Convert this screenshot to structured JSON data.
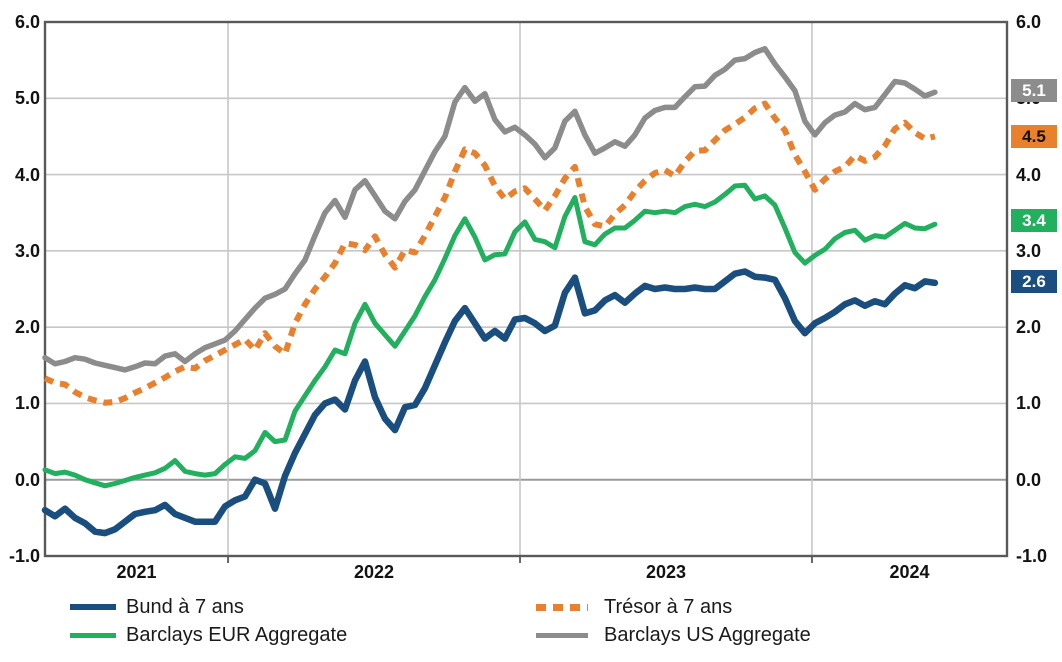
{
  "chart_data": {
    "type": "line",
    "title": "",
    "y_axis": {
      "min": -1.0,
      "max": 6.0,
      "tick_step": 1.0,
      "tick_labels": [
        "6.0",
        "5.0",
        "4.0",
        "3.0",
        "2.0",
        "1.0",
        "0.0",
        "-1.0"
      ],
      "label_sides": "both",
      "grid": true
    },
    "x_axis": {
      "year_labels": [
        "2021",
        "2022",
        "2023",
        "2024"
      ],
      "gridline_years": [
        2022,
        2023,
        2024
      ]
    },
    "sampling": {
      "start_year": 2021.373,
      "step_year": 0.034247,
      "end_axis_year": 2024.668
    },
    "colors": {
      "grid": "#c7c7c7",
      "zero_line": "#9a9a9a",
      "frame": "#595959",
      "axis_text": "#121212",
      "legend_text": "#1a1a1a"
    },
    "series": [
      {
        "name": "Bund à 7 ans",
        "color": "#1A4E7E",
        "style": "solid",
        "end_label": "2.6",
        "end_label_text_color": "#ffffff",
        "values": [
          -0.4,
          -0.48,
          -0.38,
          -0.5,
          -0.57,
          -0.68,
          -0.7,
          -0.65,
          -0.55,
          -0.45,
          -0.42,
          -0.4,
          -0.33,
          -0.45,
          -0.5,
          -0.55,
          -0.55,
          -0.55,
          -0.35,
          -0.27,
          -0.22,
          0.0,
          -0.05,
          -0.38,
          0.05,
          0.35,
          0.6,
          0.85,
          1.0,
          1.05,
          0.92,
          1.3,
          1.55,
          1.08,
          0.8,
          0.65,
          0.95,
          0.98,
          1.2,
          1.5,
          1.8,
          2.08,
          2.25,
          2.05,
          1.85,
          1.95,
          1.85,
          2.1,
          2.12,
          2.05,
          1.95,
          2.02,
          2.45,
          2.65,
          2.18,
          2.22,
          2.35,
          2.42,
          2.32,
          2.44,
          2.54,
          2.5,
          2.52,
          2.5,
          2.5,
          2.52,
          2.5,
          2.5,
          2.6,
          2.7,
          2.73,
          2.66,
          2.65,
          2.62,
          2.38,
          2.08,
          1.92,
          2.05,
          2.12,
          2.2,
          2.3,
          2.35,
          2.28,
          2.34,
          2.3,
          2.44,
          2.55,
          2.51,
          2.6,
          2.58
        ]
      },
      {
        "name": "Trésor à 7 ans",
        "color": "#E8802D",
        "style": "dashed",
        "end_label": "4.5",
        "end_label_text_color": "#111111",
        "values": [
          1.33,
          1.27,
          1.25,
          1.15,
          1.08,
          1.04,
          1.01,
          1.02,
          1.07,
          1.14,
          1.2,
          1.27,
          1.34,
          1.42,
          1.48,
          1.46,
          1.56,
          1.63,
          1.7,
          1.77,
          1.84,
          1.7,
          1.92,
          1.75,
          1.65,
          2.05,
          2.3,
          2.5,
          2.66,
          2.84,
          3.1,
          3.08,
          3.01,
          3.19,
          2.95,
          2.78,
          3.01,
          2.98,
          3.2,
          3.45,
          3.7,
          4.04,
          4.33,
          4.28,
          4.12,
          3.85,
          3.68,
          3.78,
          3.82,
          3.68,
          3.53,
          3.72,
          3.95,
          4.1,
          3.58,
          3.35,
          3.32,
          3.48,
          3.6,
          3.78,
          3.92,
          4.02,
          4.06,
          3.98,
          4.17,
          4.31,
          4.32,
          4.45,
          4.58,
          4.66,
          4.75,
          4.87,
          4.93,
          4.74,
          4.58,
          4.26,
          4.04,
          3.8,
          3.94,
          4.04,
          4.1,
          4.25,
          4.18,
          4.23,
          4.38,
          4.6,
          4.68,
          4.55,
          4.47,
          4.5
        ]
      },
      {
        "name": "Barclays EUR Aggregate",
        "color": "#22B05F",
        "style": "solid",
        "end_label": "3.4",
        "end_label_text_color": "#ffffff",
        "values": [
          0.13,
          0.08,
          0.1,
          0.06,
          0.0,
          -0.04,
          -0.08,
          -0.05,
          -0.01,
          0.03,
          0.06,
          0.09,
          0.15,
          0.25,
          0.11,
          0.08,
          0.06,
          0.08,
          0.2,
          0.3,
          0.28,
          0.38,
          0.62,
          0.5,
          0.52,
          0.9,
          1.1,
          1.3,
          1.48,
          1.7,
          1.65,
          2.05,
          2.3,
          2.05,
          1.9,
          1.75,
          1.95,
          2.15,
          2.4,
          2.62,
          2.9,
          3.2,
          3.42,
          3.18,
          2.88,
          2.95,
          2.96,
          3.25,
          3.38,
          3.15,
          3.12,
          3.04,
          3.45,
          3.7,
          3.12,
          3.08,
          3.22,
          3.3,
          3.3,
          3.4,
          3.52,
          3.5,
          3.52,
          3.5,
          3.58,
          3.61,
          3.58,
          3.64,
          3.74,
          3.85,
          3.86,
          3.68,
          3.72,
          3.6,
          3.3,
          2.98,
          2.84,
          2.94,
          3.02,
          3.16,
          3.24,
          3.27,
          3.14,
          3.2,
          3.18,
          3.27,
          3.36,
          3.3,
          3.29,
          3.35
        ]
      },
      {
        "name": "Barclays US Aggregate",
        "color": "#8C8C8C",
        "style": "solid",
        "end_label": "5.1",
        "end_label_text_color": "#ffffff",
        "values": [
          1.6,
          1.52,
          1.55,
          1.6,
          1.58,
          1.53,
          1.5,
          1.47,
          1.44,
          1.48,
          1.53,
          1.52,
          1.62,
          1.65,
          1.55,
          1.65,
          1.73,
          1.78,
          1.83,
          1.95,
          2.1,
          2.25,
          2.38,
          2.43,
          2.5,
          2.7,
          2.88,
          3.2,
          3.5,
          3.66,
          3.44,
          3.8,
          3.92,
          3.72,
          3.52,
          3.42,
          3.65,
          3.8,
          4.05,
          4.3,
          4.5,
          4.95,
          5.14,
          4.96,
          5.06,
          4.72,
          4.56,
          4.62,
          4.52,
          4.4,
          4.22,
          4.35,
          4.7,
          4.83,
          4.52,
          4.28,
          4.35,
          4.43,
          4.37,
          4.52,
          4.74,
          4.84,
          4.88,
          4.88,
          5.02,
          5.15,
          5.16,
          5.3,
          5.38,
          5.5,
          5.52,
          5.6,
          5.65,
          5.45,
          5.28,
          5.1,
          4.7,
          4.52,
          4.68,
          4.78,
          4.82,
          4.93,
          4.85,
          4.88,
          5.05,
          5.22,
          5.2,
          5.12,
          5.03,
          5.08
        ]
      }
    ],
    "legend_columns": [
      [
        "Bund à 7 ans",
        "Barclays EUR Aggregate"
      ],
      [
        "Trésor à 7 ans",
        "Barclays US Aggregate"
      ]
    ]
  }
}
